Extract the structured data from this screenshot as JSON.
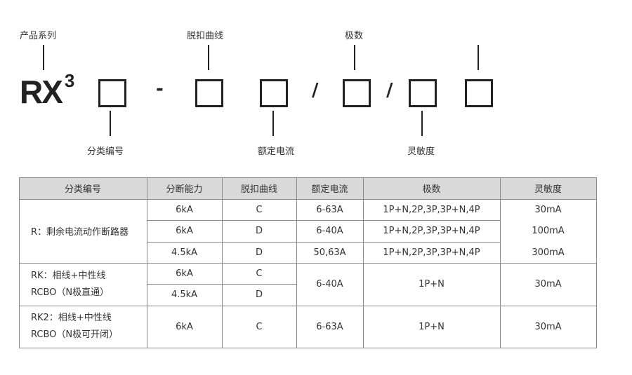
{
  "diagram": {
    "model": "RX",
    "model_sup": "3",
    "top_labels": [
      "产品系列",
      "脱扣曲线",
      "极数"
    ],
    "bottom_labels": [
      "分类编号",
      "额定电流",
      "灵敏度"
    ],
    "separators": [
      "-",
      "/",
      "/"
    ]
  },
  "table": {
    "headers": [
      "分类编号",
      "分断能力",
      "脱扣曲线",
      "额定电流",
      "极数",
      "灵敏度"
    ],
    "groups": [
      {
        "category": [
          "R：剩余电流动作断路器"
        ],
        "rows": [
          [
            "6kA",
            "C",
            "6-63A",
            "1P+N,2P,3P,3P+N,4P"
          ],
          [
            "6kA",
            "D",
            "6-40A",
            "1P+N,2P,3P,3P+N,4P"
          ],
          [
            "4.5kA",
            "D",
            "50,63A",
            "1P+N,2P,3P,3P+N,4P"
          ]
        ],
        "sensitivity": [
          "30mA",
          "100mA",
          "300mA"
        ]
      },
      {
        "category": [
          "RK：相线+中性线",
          "RCBO（N极直通）"
        ],
        "rows": [
          [
            "6kA",
            "C"
          ],
          [
            "4.5kA",
            "D"
          ]
        ],
        "current": "6-40A",
        "poles": "1P+N",
        "sensitivity": "30mA"
      },
      {
        "category": [
          "RK2：相线+中性线",
          "RCBO（N极可开闭）"
        ],
        "rows": [
          [
            "6kA",
            "C",
            "6-63A",
            "1P+N"
          ]
        ],
        "sensitivity": "30mA"
      }
    ]
  }
}
